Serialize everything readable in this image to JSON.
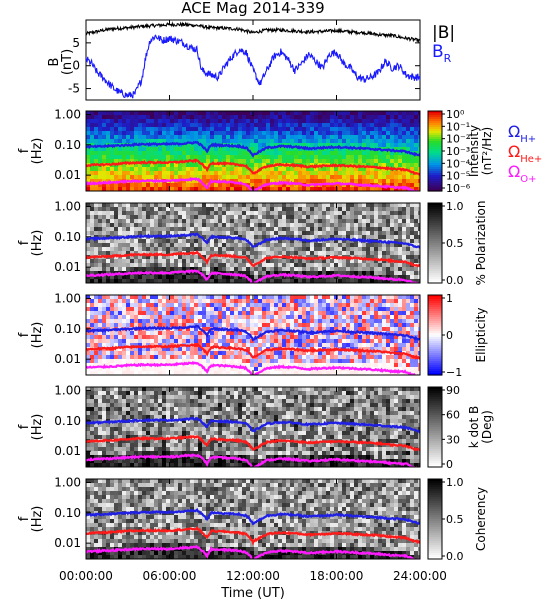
{
  "title": "ACE Mag 2014-339",
  "x_axis": {
    "label": "Time (UT)",
    "range_hours": [
      0,
      24
    ],
    "ticks": [
      {
        "h": 0,
        "label": "00:00:00"
      },
      {
        "h": 6,
        "label": "06:00:00"
      },
      {
        "h": 12,
        "label": "12:00:00"
      },
      {
        "h": 18,
        "label": "18:00:00"
      },
      {
        "h": 24,
        "label": "24:00:00"
      }
    ]
  },
  "colors": {
    "B_total": "#000000",
    "B_R": "#1a1aff",
    "H_plus": "#1f1fe6",
    "He_plus": "#ff1a1a",
    "O_plus": "#ff1aff",
    "frame": "#000000"
  },
  "gyro_legend": [
    {
      "symbol": "Ω",
      "sub": "H+",
      "color": "#1f1fe6"
    },
    {
      "symbol": "Ω",
      "sub": "He+",
      "color": "#ff1a1a"
    },
    {
      "symbol": "Ω",
      "sub": "O+",
      "color": "#ff1aff"
    }
  ],
  "panel_b": {
    "ylabel_main": "B",
    "ylabel_unit": "(nT)",
    "y_ticks": [
      5,
      0,
      -5
    ],
    "legend": [
      {
        "text": "|B|",
        "color": "#000000"
      },
      {
        "text": "B",
        "sub": "R",
        "color": "#1a1aff"
      }
    ]
  },
  "freq_axis": {
    "ylabel_main": "f",
    "ylabel_unit": "(Hz)",
    "ticks": [
      "1.00",
      "0.10",
      "0.01"
    ]
  },
  "spectrograms": [
    {
      "id": "intensity",
      "colorbar": "rainbow",
      "label_lines": [
        "Intensity",
        "(nT²/Hz)"
      ],
      "cb_ticks": [
        "10⁰",
        "10⁻¹",
        "10⁻²",
        "10⁻³",
        "10⁻⁴",
        "10⁻⁵",
        "10⁻⁶"
      ]
    },
    {
      "id": "polarization",
      "colorbar": "gray",
      "label_lines": [
        "% Polarization"
      ],
      "cb_ticks": [
        "1.0",
        "0.5",
        "0.0"
      ]
    },
    {
      "id": "ellipticity",
      "colorbar": "bwr",
      "label_lines": [
        "Ellipticity"
      ],
      "cb_ticks": [
        "1",
        "0",
        "−1"
      ]
    },
    {
      "id": "kdotb",
      "colorbar": "gray",
      "label_lines": [
        "k dot B",
        "(Deg)"
      ],
      "cb_ticks": [
        "90",
        "60",
        "30",
        "0"
      ]
    },
    {
      "id": "coherency",
      "colorbar": "gray",
      "label_lines": [
        "Coherency"
      ],
      "cb_ticks": [
        "1.0",
        "0.5",
        "0.0"
      ]
    }
  ],
  "chart_data": {
    "type": "line",
    "x_unit": "hours UT",
    "series": [
      {
        "name": "|B|",
        "x": [
          0,
          0.5,
          1,
          1.5,
          2,
          3,
          4,
          5,
          6,
          7,
          8,
          8.5,
          9,
          10,
          11,
          11.5,
          12,
          12.5,
          13,
          14,
          15,
          16,
          17,
          18,
          19,
          20,
          21,
          22,
          23,
          24
        ],
        "y": [
          7.0,
          7.3,
          7.6,
          7.9,
          8.1,
          8.3,
          8.6,
          8.8,
          9.0,
          9.0,
          8.8,
          8.5,
          8.3,
          8.2,
          8.0,
          7.6,
          7.2,
          7.5,
          7.8,
          7.8,
          7.6,
          7.4,
          7.5,
          7.7,
          7.4,
          7.2,
          6.8,
          6.6,
          6.0,
          5.5
        ]
      },
      {
        "name": "B_R",
        "x": [
          0,
          0.4,
          0.8,
          1.2,
          1.5,
          2.0,
          2.5,
          3.0,
          3.5,
          4.0,
          4.3,
          4.6,
          5.0,
          5.5,
          6.0,
          6.5,
          7.0,
          7.5,
          8.0,
          8.3,
          8.6,
          9.0,
          9.5,
          10.0,
          10.5,
          11.0,
          11.5,
          12.0,
          12.5,
          13.0,
          13.5,
          14.0,
          14.5,
          15.0,
          15.5,
          16.0,
          16.5,
          17.0,
          17.5,
          18.0,
          18.5,
          19.0,
          19.5,
          20.0,
          20.5,
          21.0,
          21.5,
          22.0,
          22.5,
          23.0,
          23.5,
          24.0
        ],
        "y": [
          1.5,
          0.5,
          -1.5,
          -2.5,
          -3.5,
          -5.0,
          -6.0,
          -6.5,
          -6.3,
          -3.0,
          2.0,
          5.5,
          6.5,
          5.5,
          6.0,
          5.5,
          5.0,
          4.0,
          3.5,
          -1.0,
          -1.5,
          -2.0,
          -2.5,
          0.0,
          2.0,
          3.5,
          3.0,
          -1.0,
          -4.0,
          -1.0,
          2.0,
          3.0,
          1.5,
          -1.0,
          0.5,
          2.5,
          1.0,
          -0.5,
          2.5,
          3.0,
          0.5,
          -0.5,
          -2.5,
          -3.0,
          -2.5,
          -1.5,
          1.0,
          -0.5,
          0.0,
          -2.0,
          -2.5,
          -2.5
        ]
      },
      {
        "name": "Ω_H+ (Hz)",
        "x": [
          0,
          1,
          2,
          3,
          4,
          5,
          6,
          7,
          8,
          8.7,
          9,
          10,
          11,
          11.5,
          12,
          12.5,
          13,
          14,
          15,
          16,
          17,
          18,
          19,
          20,
          21,
          22,
          23,
          23.5,
          24
        ],
        "y": [
          0.085,
          0.088,
          0.093,
          0.098,
          0.105,
          0.105,
          0.105,
          0.11,
          0.12,
          0.06,
          0.1,
          0.095,
          0.09,
          0.08,
          0.045,
          0.06,
          0.08,
          0.09,
          0.085,
          0.075,
          0.08,
          0.085,
          0.08,
          0.075,
          0.07,
          0.065,
          0.06,
          0.05,
          0.045
        ]
      },
      {
        "name": "Ω_He+ (Hz)",
        "x": [
          0,
          1,
          2,
          3,
          4,
          5,
          6,
          7,
          8,
          8.7,
          9,
          10,
          11,
          11.5,
          12,
          12.5,
          13,
          14,
          15,
          16,
          17,
          18,
          19,
          20,
          21,
          22,
          23,
          23.5,
          24
        ],
        "y": [
          0.021,
          0.022,
          0.023,
          0.025,
          0.026,
          0.026,
          0.026,
          0.028,
          0.03,
          0.015,
          0.025,
          0.024,
          0.022,
          0.02,
          0.011,
          0.015,
          0.02,
          0.022,
          0.021,
          0.019,
          0.02,
          0.021,
          0.02,
          0.019,
          0.018,
          0.016,
          0.015,
          0.012,
          0.011
        ]
      },
      {
        "name": "Ω_O+ (Hz)",
        "x": [
          0,
          1,
          2,
          3,
          4,
          5,
          6,
          7,
          8,
          8.7,
          9,
          10,
          11,
          11.5,
          12,
          12.5,
          13,
          14,
          15,
          16,
          17,
          18,
          19,
          20,
          21,
          22,
          23,
          23.5,
          24
        ],
        "y": [
          0.0053,
          0.0055,
          0.0058,
          0.0062,
          0.0065,
          0.0065,
          0.0065,
          0.007,
          0.0075,
          0.0038,
          0.0063,
          0.006,
          0.0056,
          0.005,
          0.0028,
          0.0038,
          0.005,
          0.0056,
          0.0053,
          0.0047,
          0.005,
          0.0053,
          0.005,
          0.0047,
          0.0044,
          0.004,
          0.0038,
          0.003,
          0.0028
        ]
      }
    ],
    "b_ylim": [
      -7.5,
      10
    ],
    "f_ylim_hz": [
      0.003,
      1.3
    ],
    "f_scale": "log"
  }
}
